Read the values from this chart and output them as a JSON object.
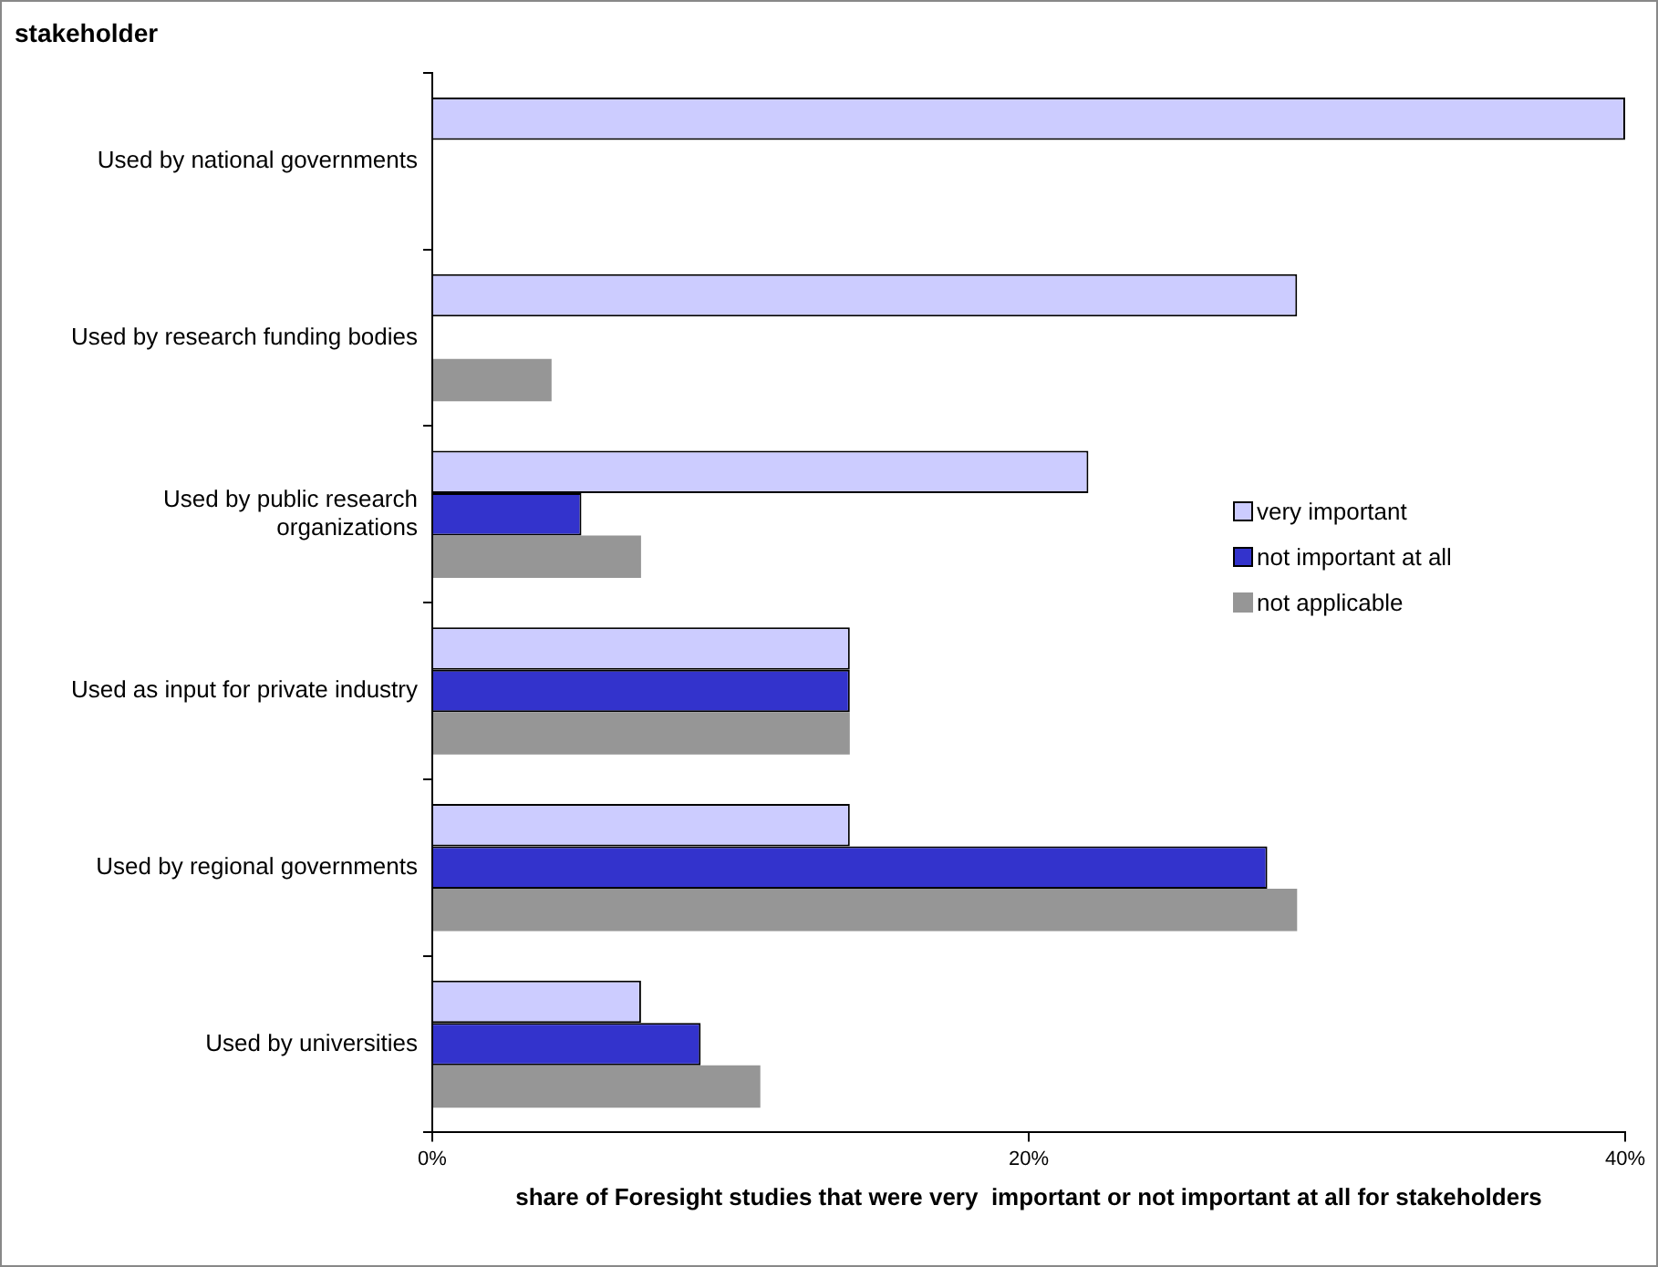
{
  "chart_data": {
    "type": "bar",
    "orientation": "horizontal",
    "ylabel": "stakeholder",
    "xlabel": "share of Foresight studies that were very  important or not important at all for stakeholders",
    "categories": [
      "Used by national governments",
      "Used by research funding bodies",
      "Used by public research organizations",
      "Used as input for private industry",
      "Used by regional governments",
      "Used by universities"
    ],
    "series": [
      {
        "name": "very important",
        "color": "#ccccff",
        "values": [
          40,
          29,
          22,
          14,
          14,
          7
        ]
      },
      {
        "name": "not important at all",
        "color": "#3333cc",
        "values": [
          0,
          0,
          5,
          14,
          28,
          9
        ]
      },
      {
        "name": "not applicable",
        "color": "#969696",
        "values": [
          0,
          4,
          7,
          14,
          29,
          11
        ]
      }
    ],
    "xlim": [
      0,
      40
    ],
    "xticks": [
      {
        "value": 0,
        "label": "0%"
      },
      {
        "value": 20,
        "label": "20%"
      },
      {
        "value": 40,
        "label": "40%"
      }
    ],
    "grid": false,
    "legend": "right"
  }
}
